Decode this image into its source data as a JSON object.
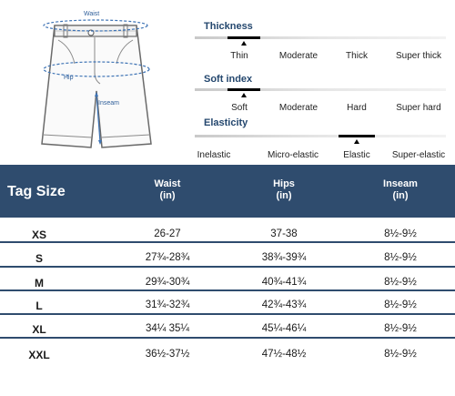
{
  "diagram": {
    "waist_label": "Waist",
    "hip_label": "Hip",
    "inseam_label": "Inseam"
  },
  "scales": [
    {
      "title": "Thickness",
      "options": [
        "Thin",
        "Moderate",
        "Thick",
        "Super thick"
      ],
      "selected_index": 0
    },
    {
      "title": "Soft index",
      "options": [
        "Soft",
        "Moderate",
        "Hard",
        "Super hard"
      ],
      "selected_index": 0
    },
    {
      "title": "Elasticity",
      "options": [
        "Inelastic",
        "Micro-elastic",
        "Elastic",
        "Super-elastic"
      ],
      "selected_index": 2
    }
  ],
  "table": {
    "header": {
      "tag_size": "Tag Size",
      "waist": "Waist",
      "waist_unit": "(in)",
      "hips": "Hips",
      "hips_unit": "(in)",
      "inseam": "Inseam",
      "inseam_unit": "(in)"
    },
    "rows": [
      {
        "size": "XS",
        "waist": "26-27",
        "hips": "37-38",
        "inseam": "8½-9½"
      },
      {
        "size": "S",
        "waist": "27¾-28¾",
        "hips": "38¾-39¾",
        "inseam": "8½-9½"
      },
      {
        "size": "M",
        "waist": "29¾-30¾",
        "hips": "40¾-41¾",
        "inseam": "8½-9½"
      },
      {
        "size": "L",
        "waist": "31¾-32¾",
        "hips": "42¾-43¾",
        "inseam": "8½-9½"
      },
      {
        "size": "XL",
        "waist": "34¼ 35¼",
        "hips": "45¼-46¼",
        "inseam": "8½-9½"
      },
      {
        "size": "XXL",
        "waist": "36½-37½",
        "hips": "47½-48½",
        "inseam": "8½-9½"
      }
    ]
  }
}
